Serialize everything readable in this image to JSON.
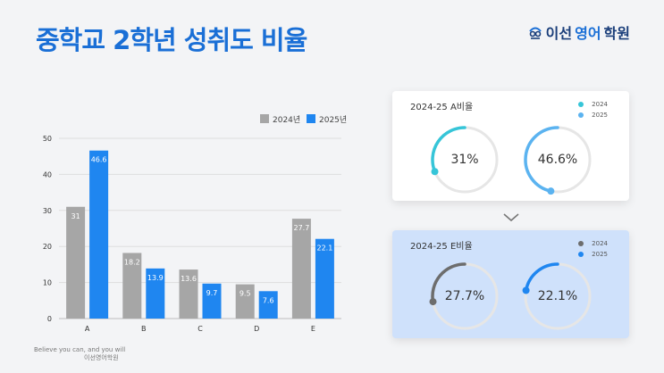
{
  "title": "중학교 2학년 성취도 비율",
  "brand": {
    "part1": "이선",
    "part2": "영어",
    "part3": "학원"
  },
  "chart_data": {
    "type": "bar",
    "categories": [
      "A",
      "B",
      "C",
      "D",
      "E"
    ],
    "series": [
      {
        "name": "2024년",
        "values": [
          31,
          18.2,
          13.6,
          9.5,
          27.7
        ],
        "color": "#a6a6a6"
      },
      {
        "name": "2025년",
        "values": [
          46.6,
          13.9,
          9.7,
          7.6,
          22.1
        ],
        "color": "#1f86f0"
      }
    ],
    "ylim": [
      0,
      50
    ],
    "yticks": [
      0,
      10,
      20,
      30,
      40,
      50
    ],
    "grid": true,
    "legend": "top-right"
  },
  "cards": [
    {
      "title": "2024-25 A비율",
      "legend": [
        {
          "label": "2024",
          "color": "#36c5d8"
        },
        {
          "label": "2025",
          "color": "#5bb3f0"
        }
      ],
      "donuts": [
        {
          "label": "31%",
          "value": 31,
          "color": "#36c5d8"
        },
        {
          "label": "46.6%",
          "value": 46.6,
          "color": "#5bb3f0"
        }
      ]
    },
    {
      "title": "2024-25 E비율",
      "legend": [
        {
          "label": "2024",
          "color": "#6d6d6d"
        },
        {
          "label": "2025",
          "color": "#1f86f0"
        }
      ],
      "donuts": [
        {
          "label": "27.7%",
          "value": 27.7,
          "color": "#6d6d6d"
        },
        {
          "label": "22.1%",
          "value": 22.1,
          "color": "#1f86f0"
        }
      ]
    }
  ],
  "footer": {
    "line1": "Believe you can, and you will",
    "line2": "이선영어학원"
  }
}
